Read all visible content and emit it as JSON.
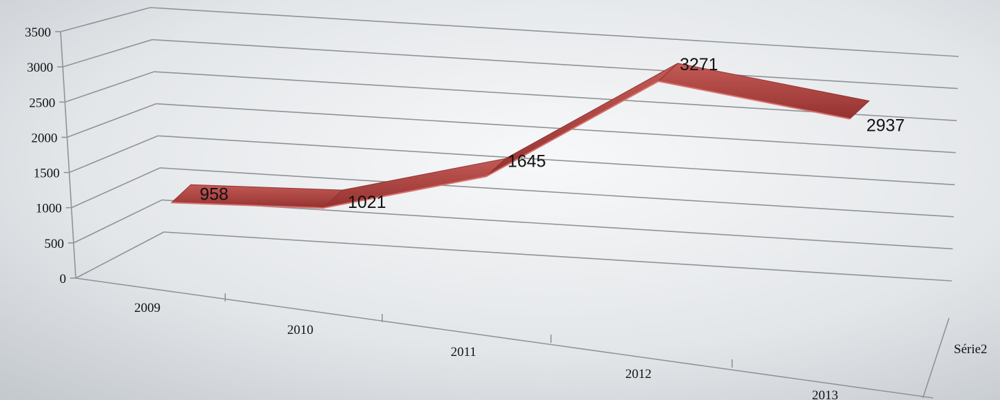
{
  "chart_data": {
    "type": "line",
    "style": "3d-ribbon",
    "categories": [
      "2009",
      "2010",
      "2011",
      "2012",
      "2013"
    ],
    "series": [
      {
        "name": "Série2",
        "values": [
          958,
          1021,
          1645,
          3271,
          2937
        ]
      }
    ],
    "data_labels": [
      "958",
      "1021",
      "1645",
      "3271",
      "2937"
    ],
    "y_ticks": [
      "0",
      "500",
      "1000",
      "1500",
      "2000",
      "2500",
      "3000",
      "3500"
    ],
    "ylim": [
      0,
      3500
    ],
    "grid": true,
    "legend": "none",
    "colors": {
      "ribbon_top": "#b84a47",
      "ribbon_dark": "#943230",
      "ribbon_edge": "#d7706b",
      "background_light": "#f7f8f9",
      "background_dark": "#c4c9ce",
      "grid": "#8f9296",
      "text": "#111111"
    }
  }
}
